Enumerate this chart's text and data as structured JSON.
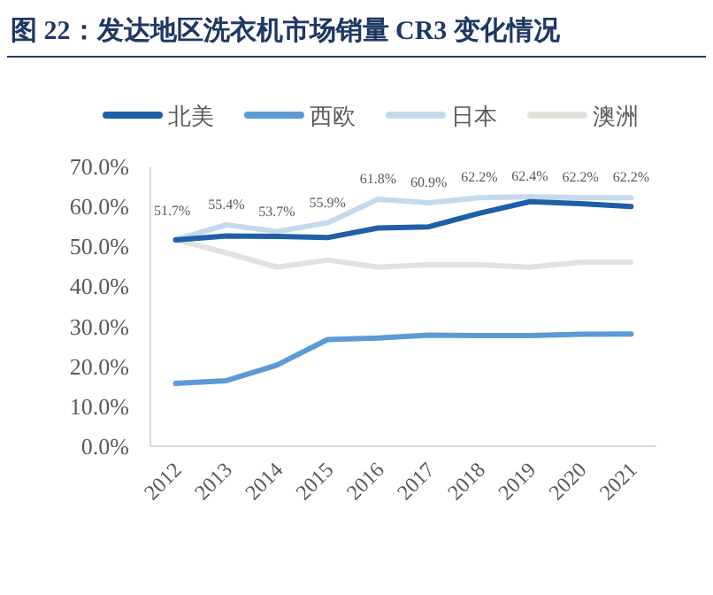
{
  "chart_data": {
    "type": "line",
    "title": "图 22：发达地区洗衣机市场销量 CR3 变化情况",
    "categories": [
      "2012",
      "2013",
      "2014",
      "2015",
      "2016",
      "2017",
      "2018",
      "2019",
      "2020",
      "2021"
    ],
    "series": [
      {
        "name": "北美",
        "color": "#1f5fa8",
        "values": [
          51.6,
          52.6,
          52.5,
          52.2,
          54.6,
          54.9,
          58.3,
          61.2,
          60.7,
          60.0
        ]
      },
      {
        "name": "西欧",
        "color": "#5b9bd5",
        "values": [
          15.7,
          16.4,
          20.3,
          26.7,
          27.1,
          27.8,
          27.7,
          27.7,
          28.0,
          28.1
        ]
      },
      {
        "name": "日本",
        "color": "#c5d9ed",
        "values": [
          51.7,
          55.4,
          53.7,
          55.9,
          61.8,
          60.9,
          62.2,
          62.4,
          62.2,
          62.2
        ],
        "value_labels": [
          "51.7%",
          "55.4%",
          "53.7%",
          "55.9%",
          "61.8%",
          "60.9%",
          "62.2%",
          "62.4%",
          "62.2%",
          "62.2%"
        ]
      },
      {
        "name": "澳洲",
        "color": "#e3e1dc",
        "values": [
          51.7,
          48.4,
          44.8,
          46.6,
          44.8,
          45.4,
          45.4,
          44.8,
          46.0,
          46.0
        ]
      }
    ],
    "ylim": [
      0,
      70
    ],
    "yticks": [
      {
        "value": 0,
        "label": "0.0%"
      },
      {
        "value": 10,
        "label": "10.0%"
      },
      {
        "value": 20,
        "label": "20.0%"
      },
      {
        "value": 30,
        "label": "30.0%"
      },
      {
        "value": 40,
        "label": "40.0%"
      },
      {
        "value": 50,
        "label": "50.0%"
      },
      {
        "value": 60,
        "label": "60.0%"
      },
      {
        "value": 70,
        "label": "70.0%"
      }
    ],
    "grid": false,
    "legend": "top"
  }
}
